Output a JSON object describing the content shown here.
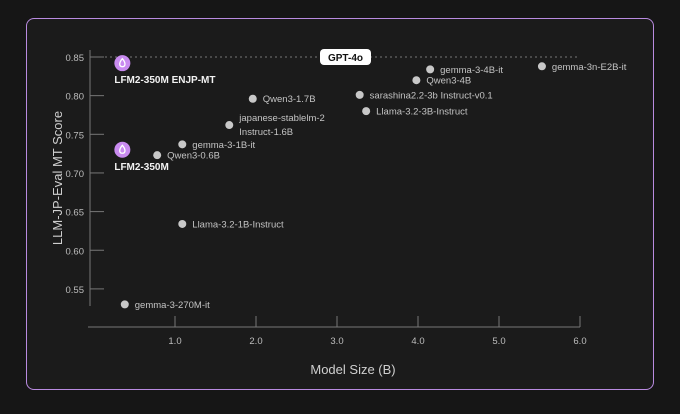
{
  "chart_data": {
    "type": "scatter",
    "title": "",
    "xlabel": "Model Size (B)",
    "ylabel": "LLM-JP-Eval MT Score",
    "xlim": [
      0,
      6.0
    ],
    "ylim": [
      0.53,
      0.85
    ],
    "x_ticks": [
      "1.0",
      "2.0",
      "3.0",
      "4.0",
      "5.0",
      "6.0"
    ],
    "x_tick_values": [
      1,
      2,
      3,
      4,
      5,
      6
    ],
    "y_ticks": [
      "0.85",
      "0.80",
      "0.75",
      "0.70",
      "0.65",
      "0.60",
      "0.55"
    ],
    "y_tick_values": [
      0.85,
      0.8,
      0.75,
      0.7,
      0.65,
      0.6,
      0.55
    ],
    "grid": false,
    "reference_line": {
      "label": "GPT-4o",
      "y": 0.85
    },
    "highlight_color": "#c98bf0",
    "point_color": "#c8c8c8",
    "points": [
      {
        "name": "LFM2-350M ENJP-MT",
        "x": 0.35,
        "y": 0.842,
        "highlight": true
      },
      {
        "name": "LFM2-350M",
        "x": 0.35,
        "y": 0.73,
        "highlight": true
      },
      {
        "name": "Qwen3-0.6B",
        "x": 0.78,
        "y": 0.723
      },
      {
        "name": "gemma-3-1B-it",
        "x": 1.09,
        "y": 0.737
      },
      {
        "name": "japanese-stablelm-2 Instruct-1.6B",
        "lines": [
          "japanese-stablelm-2",
          "Instruct-1.6B"
        ],
        "x": 1.67,
        "y": 0.762
      },
      {
        "name": "Qwen3-1.7B",
        "x": 1.96,
        "y": 0.796
      },
      {
        "name": "sarashina2.2-3b Instruct-v0.1",
        "x": 3.28,
        "y": 0.801
      },
      {
        "name": "Llama-3.2-3B-Instruct",
        "x": 3.36,
        "y": 0.78
      },
      {
        "name": "Qwen3-4B",
        "x": 3.98,
        "y": 0.82
      },
      {
        "name": "gemma-3-4B-it",
        "x": 4.15,
        "y": 0.834
      },
      {
        "name": "gemma-3n-E2B-it",
        "x": 5.53,
        "y": 0.838
      },
      {
        "name": "Llama-3.2-1B-Instruct",
        "x": 1.09,
        "y": 0.634
      },
      {
        "name": "gemma-3-270M-it",
        "x": 0.38,
        "y": 0.53
      }
    ]
  }
}
